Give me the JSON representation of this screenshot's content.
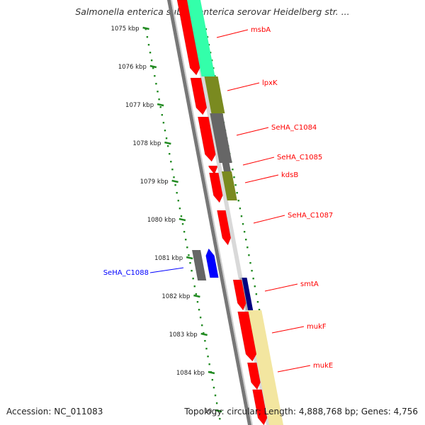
{
  "title": "Salmonella enterica subsp. enterica serovar Heidelberg str. ...",
  "footer": {
    "accession": "Accession: NC_011083",
    "topology": "Topology: circular; Length: 4,888,768 bp; Genes: 4,756"
  },
  "ruler_ticks": [
    "1075 kbp",
    "1076 kbp",
    "1077 kbp",
    "1078 kbp",
    "1079 kbp",
    "1080 kbp",
    "1081 kbp",
    "1082 kbp",
    "1083 kbp",
    "1084 kbp",
    "10"
  ],
  "genes": [
    {
      "name": "msbA",
      "strand": "forward",
      "color": "#ff0000"
    },
    {
      "name": "lpxK",
      "strand": "forward",
      "color": "#ff0000"
    },
    {
      "name": "SeHA_C1084",
      "strand": "forward",
      "color": "#ff0000"
    },
    {
      "name": "SeHA_C1085",
      "strand": "forward",
      "color": "#ff0000"
    },
    {
      "name": "kdsB",
      "strand": "forward",
      "color": "#ff0000"
    },
    {
      "name": "SeHA_C1087",
      "strand": "forward",
      "color": "#ff0000"
    },
    {
      "name": "SeHA_C1088",
      "strand": "reverse",
      "color": "#0000ff"
    },
    {
      "name": "smtA",
      "strand": "forward",
      "color": "#ff0000"
    },
    {
      "name": "mukF",
      "strand": "forward",
      "color": "#ff0000"
    },
    {
      "name": "mukE",
      "strand": "forward",
      "color": "#ff0000"
    }
  ],
  "colors": {
    "forward_gene": "#ff0000",
    "reverse_gene": "#0000ff",
    "ruler_dots": "#228b22",
    "backbone": "#777777",
    "cog_mint": "#33ffaa",
    "cog_olive": "#7a8a20",
    "cog_gray": "#666666",
    "cog_navy": "#000080",
    "cog_cream": "#f3e6a0"
  }
}
